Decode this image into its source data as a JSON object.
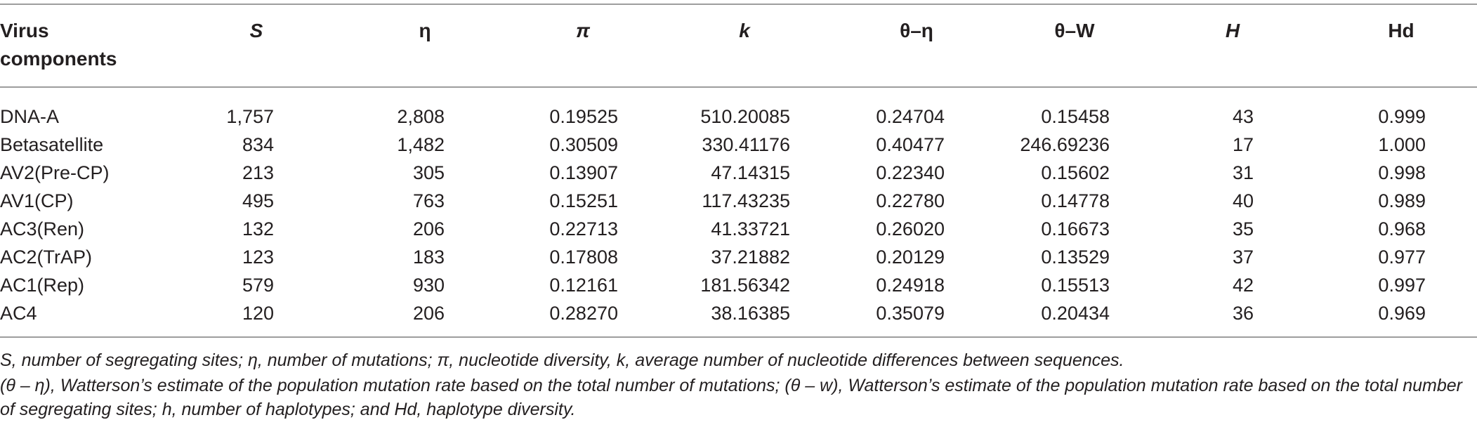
{
  "table": {
    "header": {
      "component_line1": "Virus",
      "component_line2": "components",
      "s": "S",
      "eta": "η",
      "pi": "π",
      "k": "k",
      "theta_eta": "θ–η",
      "theta_w": "θ–W",
      "h": "H",
      "hd": "Hd"
    },
    "rows": [
      {
        "component": "DNA-A",
        "s": "1,757",
        "eta": "2,808",
        "pi": "0.19525",
        "k": "510.20085",
        "theta_eta": "0.24704",
        "theta_w": "0.15458",
        "h": "43",
        "hd": "0.999"
      },
      {
        "component": "Betasatellite",
        "s": "834",
        "eta": "1,482",
        "pi": "0.30509",
        "k": "330.41176",
        "theta_eta": "0.40477",
        "theta_w": "246.69236",
        "h": "17",
        "hd": "1.000"
      },
      {
        "component": "AV2(Pre-CP)",
        "s": "213",
        "eta": "305",
        "pi": "0.13907",
        "k": "47.14315",
        "theta_eta": "0.22340",
        "theta_w": "0.15602",
        "h": "31",
        "hd": "0.998"
      },
      {
        "component": "AV1(CP)",
        "s": "495",
        "eta": "763",
        "pi": "0.15251",
        "k": "117.43235",
        "theta_eta": "0.22780",
        "theta_w": "0.14778",
        "h": "40",
        "hd": "0.989"
      },
      {
        "component": "AC3(Ren)",
        "s": "132",
        "eta": "206",
        "pi": "0.22713",
        "k": "41.33721",
        "theta_eta": "0.26020",
        "theta_w": "0.16673",
        "h": "35",
        "hd": "0.968"
      },
      {
        "component": "AC2(TrAP)",
        "s": "123",
        "eta": "183",
        "pi": "0.17808",
        "k": "37.21882",
        "theta_eta": "0.20129",
        "theta_w": "0.13529",
        "h": "37",
        "hd": "0.977"
      },
      {
        "component": "AC1(Rep)",
        "s": "579",
        "eta": "930",
        "pi": "0.12161",
        "k": "181.56342",
        "theta_eta": "0.24918",
        "theta_w": "0.15513",
        "h": "42",
        "hd": "0.997"
      },
      {
        "component": "AC4",
        "s": "120",
        "eta": "206",
        "pi": "0.28270",
        "k": "38.16385",
        "theta_eta": "0.35079",
        "theta_w": "0.20434",
        "h": "36",
        "hd": "0.969"
      }
    ]
  },
  "footnotes": {
    "line1": "S, number of segregating sites; η, number of mutations; π, nucleotide diversity, k, average number of nucleotide differences between sequences.",
    "line2": "(θ – η), Watterson’s estimate of the population mutation rate based on the total number of mutations; (θ – w), Watterson’s estimate of the population mutation rate based on the total number of segregating sites; h, number of haplotypes; and Hd, haplotype diversity."
  }
}
